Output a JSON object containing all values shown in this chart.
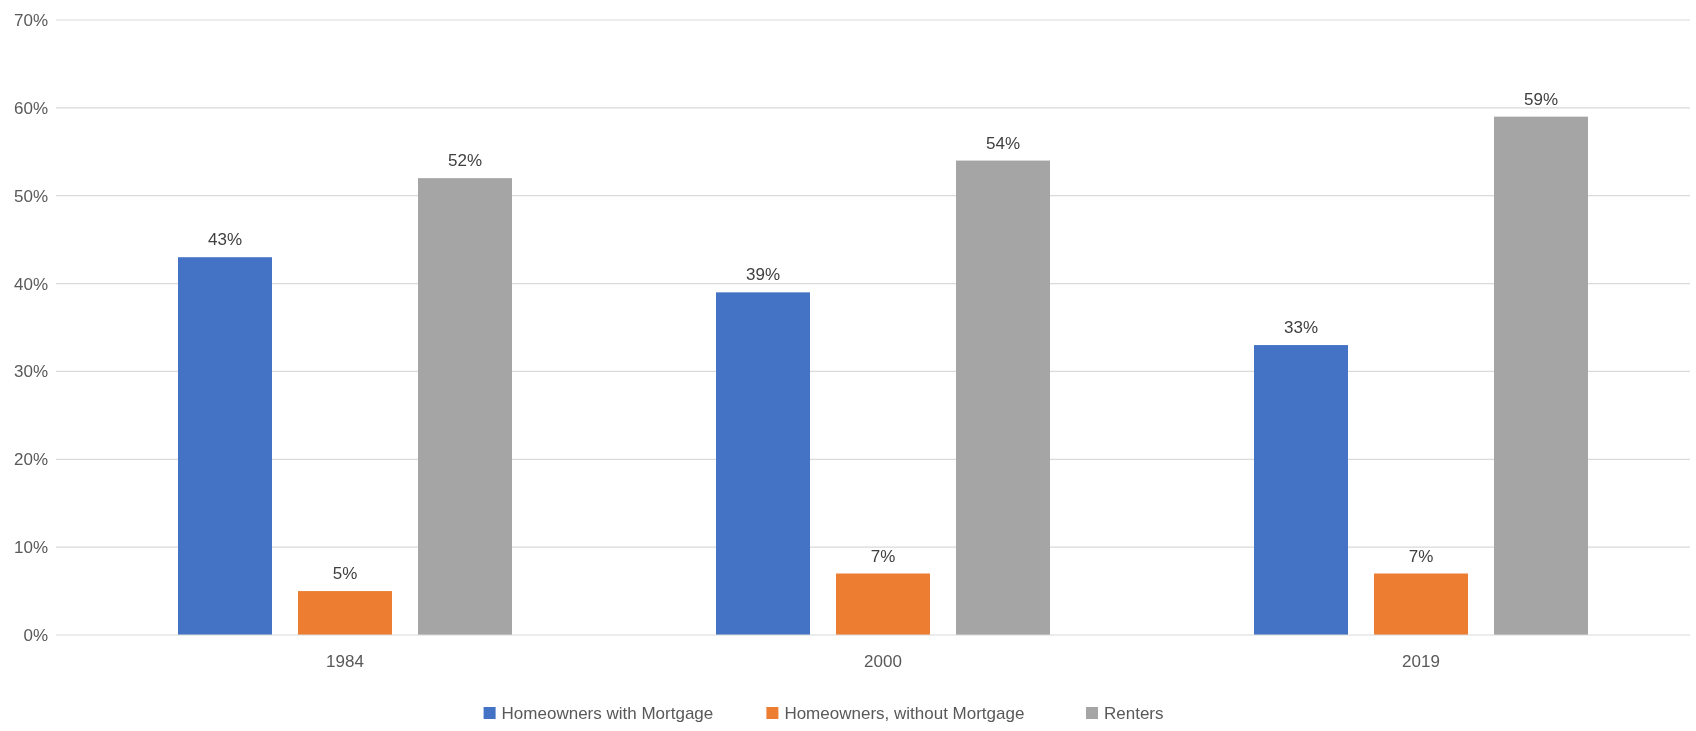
{
  "chart_data": {
    "type": "bar",
    "categories": [
      "1984",
      "2000",
      "2019"
    ],
    "series": [
      {
        "name": "Homeowners with Mortgage",
        "color": "#4472c4",
        "values": [
          43,
          39,
          33
        ],
        "value_labels": [
          "43%",
          "39%",
          "33%"
        ]
      },
      {
        "name": "Homeowners, without Mortgage",
        "color": "#ed7d31",
        "values": [
          5,
          7,
          7
        ],
        "value_labels": [
          "5%",
          "7%",
          "7%"
        ]
      },
      {
        "name": "Renters",
        "color": "#a5a5a5",
        "values": [
          52,
          54,
          59
        ],
        "value_labels": [
          "52%",
          "54%",
          "59%"
        ]
      }
    ],
    "ylim": [
      0,
      70
    ],
    "yticks": [
      {
        "value": 0,
        "label": "0%"
      },
      {
        "value": 10,
        "label": "10%"
      },
      {
        "value": 20,
        "label": "20%"
      },
      {
        "value": 30,
        "label": "30%"
      },
      {
        "value": 40,
        "label": "40%"
      },
      {
        "value": 50,
        "label": "50%"
      },
      {
        "value": 60,
        "label": "60%"
      },
      {
        "value": 70,
        "label": "70%"
      }
    ],
    "grid": "y",
    "legend": "bottom"
  }
}
